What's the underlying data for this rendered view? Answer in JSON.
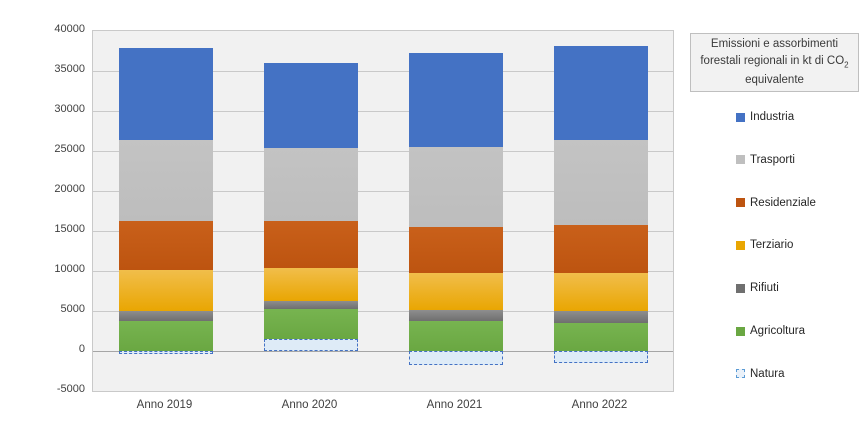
{
  "chart_data": {
    "type": "bar",
    "variant": "stacked-column",
    "title": "Emissioni e assorbimenti forestali regionali in kt di CO2 equivalente",
    "title_parts": {
      "prefix": "Emissioni e assorbimenti forestali regionali in kt di CO",
      "sub": "2",
      "suffix": " equivalente"
    },
    "categories": [
      "Anno 2019",
      "Anno 2020",
      "Anno 2021",
      "Anno 2022"
    ],
    "series": [
      {
        "name": "Industria",
        "color": "#4472C4",
        "color2": "#4472C4",
        "values": [
          11500,
          10650,
          11700,
          11750
        ]
      },
      {
        "name": "Trasporti",
        "color": "#C3C3C3",
        "color2": "#BDBDBD",
        "values": [
          10150,
          9200,
          10000,
          10700
        ]
      },
      {
        "name": "Residenziale",
        "color": "#C9601A",
        "color2": "#BD5410",
        "values": [
          6150,
          5800,
          5800,
          5900
        ]
      },
      {
        "name": "Terziario",
        "color": "#F1BE4B",
        "color2": "#E9A602",
        "values": [
          5150,
          4100,
          4600,
          4800
        ]
      },
      {
        "name": "Rifiuti",
        "color": "#8E8E8E",
        "color2": "#6F6F6F",
        "values": [
          1200,
          1100,
          1350,
          1500
        ]
      },
      {
        "name": "Agricoltura",
        "color": "#77B450",
        "color2": "#6AA742",
        "values": [
          3750,
          3750,
          3750,
          3500
        ]
      },
      {
        "name": "Natura",
        "color": "#DEEBF7",
        "border": "#4472C4",
        "style": "dashed",
        "values": [
          -400,
          1450,
          -1800,
          -1550
        ]
      }
    ],
    "bar_totals": [
      37900,
      36050,
      37200,
      38150
    ],
    "y_ticks": [
      "40000",
      "35000",
      "30000",
      "25000",
      "20000",
      "15000",
      "10000",
      "5000",
      "0",
      "-5000"
    ],
    "y_tick_values": [
      40000,
      35000,
      30000,
      25000,
      20000,
      15000,
      10000,
      5000,
      0,
      -5000
    ],
    "ylim": [
      -5000,
      40000
    ],
    "grid": true,
    "legend_position": "right",
    "colors": {
      "plot_bg": "#F1F1F1",
      "grid": "#C9C9C9",
      "zero_line": "#A6A6A6",
      "natura_fill": "#DEEBF7",
      "natura_border": "#4472C4",
      "axis_text": "#404040"
    }
  }
}
